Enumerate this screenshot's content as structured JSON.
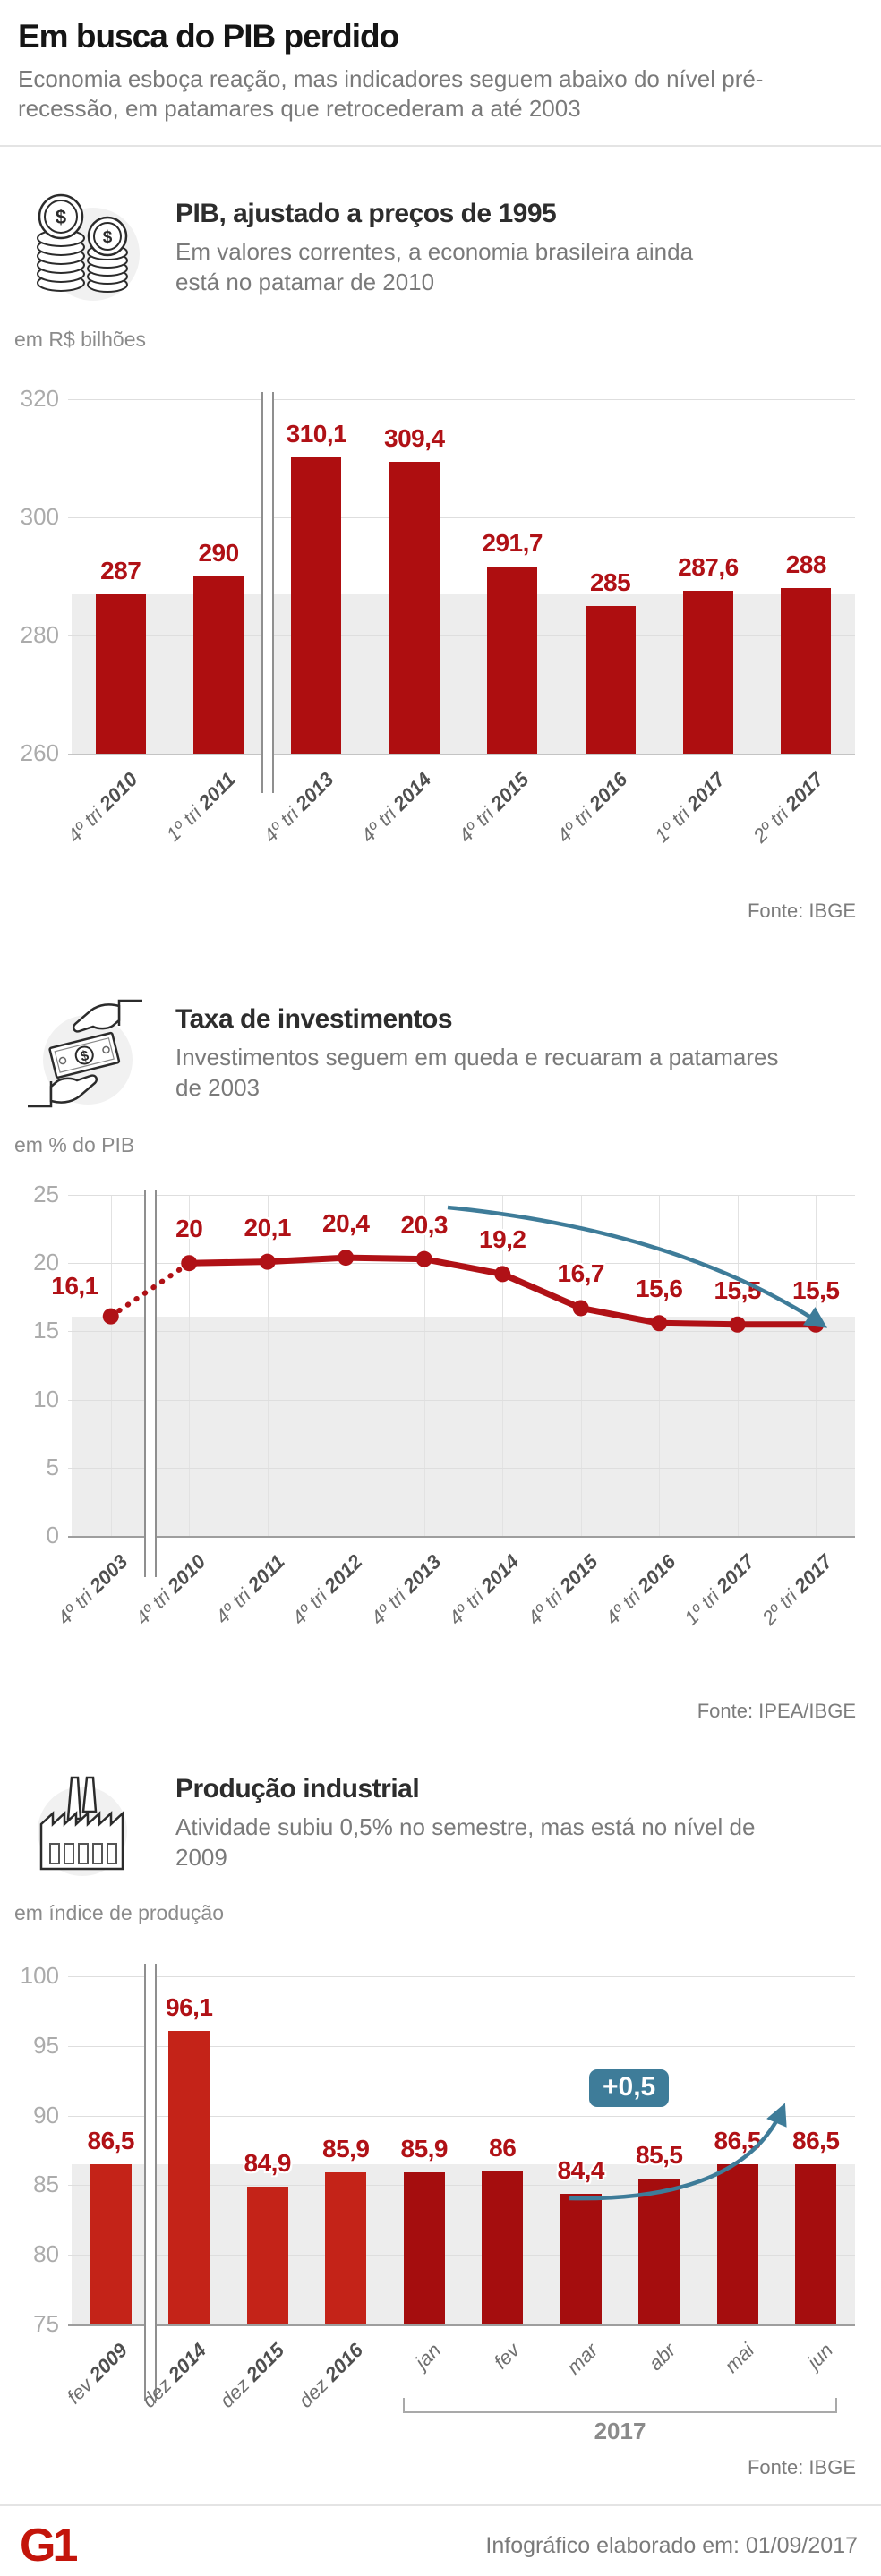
{
  "page": {
    "title": "Em busca do PIB perdido",
    "subtitle": "Economia esboça reação, mas indicadores seguem abaixo do nível pré-recessão, em patamares que retrocederam a até 2003"
  },
  "sections": [
    {
      "icon": "coins-icon",
      "title": "PIB, ajustado a preços de 1995",
      "subtitle": "Em valores correntes, a economia brasileira ainda está no patamar de 2010"
    },
    {
      "icon": "money-exchange-icon",
      "title": "Taxa de investimentos",
      "subtitle": "Investimentos seguem em queda e recuaram a patamares de 2003"
    },
    {
      "icon": "factory-icon",
      "title": "Produção industrial",
      "subtitle": "Atividade subiu 0,5% no semestre, mas está no nível de 2009"
    }
  ],
  "chart_data": [
    {
      "type": "bar",
      "title": "PIB, ajustado a preços de 1995",
      "ylabel": "em R$ bilhões",
      "categories": [
        "4º tri 2010",
        "1º tri 2011",
        "4º tri 2013",
        "4º tri 2014",
        "4º tri 2015",
        "4º tri 2016",
        "1º tri 2017",
        "2º tri 2017"
      ],
      "values": [
        287,
        290,
        310.1,
        309.4,
        291.7,
        285,
        287.6,
        288
      ],
      "labels": [
        "287",
        "290",
        "310,1",
        "309,4",
        "291,7",
        "285",
        "287,6",
        "288"
      ],
      "ylim": [
        260,
        320
      ],
      "yticks": [
        320,
        300,
        280,
        260
      ],
      "reference_band": [
        260,
        287
      ],
      "axis_break_after_index": 1,
      "grid": "horizontal",
      "legend": "none",
      "source": "Fonte: IBGE"
    },
    {
      "type": "line",
      "title": "Taxa de investimentos",
      "ylabel": "em % do PIB",
      "categories": [
        "4º tri 2003",
        "4º tri 2010",
        "4º tri 2011",
        "4º tri 2012",
        "4º tri 2013",
        "4º tri 2014",
        "4º tri 2015",
        "4º tri 2016",
        "1º tri 2017",
        "2º tri 2017"
      ],
      "values": [
        16.1,
        20,
        20.1,
        20.4,
        20.3,
        19.2,
        16.7,
        15.6,
        15.5,
        15.5
      ],
      "labels": [
        "16,1",
        "20",
        "20,1",
        "20,4",
        "20,3",
        "19,2",
        "16,7",
        "15,6",
        "15,5",
        "15,5"
      ],
      "ylim": [
        0,
        25
      ],
      "yticks": [
        25,
        20,
        15,
        10,
        5,
        0
      ],
      "reference_band": [
        0,
        16.1
      ],
      "axis_break_after_index": 0,
      "dotted_segment": [
        0,
        1
      ],
      "annotation_arrow": "down-right",
      "grid": "horizontal+vertical",
      "legend": "none",
      "source": "Fonte: IPEA/IBGE"
    },
    {
      "type": "bar",
      "title": "Produção industrial",
      "ylabel": "em índice de produção",
      "categories": [
        "fev 2009",
        "dez 2014",
        "dez 2015",
        "dez 2016",
        "jan",
        "fev",
        "mar",
        "abr",
        "mai",
        "jun"
      ],
      "values": [
        86.5,
        96.1,
        84.9,
        85.9,
        85.9,
        86,
        84.4,
        85.5,
        86.5,
        86.5
      ],
      "labels": [
        "86,5",
        "96,1",
        "84,9",
        "85,9",
        "85,9",
        "86",
        "84,4",
        "85,5",
        "86,5",
        "86,5"
      ],
      "ylim": [
        75,
        100
      ],
      "yticks": [
        100,
        95,
        90,
        85,
        80,
        75
      ],
      "reference_band": [
        75,
        86.5
      ],
      "axis_break_after_index": 0,
      "bar_color_split_index": 4,
      "annotation_badge": "+0,5",
      "annotation_arrow": "up-right",
      "bracket": {
        "from_index": 4,
        "to_index": 9,
        "label": "2017"
      },
      "grid": "horizontal",
      "legend": "none",
      "source": "Fonte: IBGE"
    }
  ],
  "footer": {
    "logo": "G1",
    "note": "Infográfico elaborado em: 01/09/2017"
  },
  "colors": {
    "bar_red": "#ae0e10",
    "bar_red_light": "#c42318",
    "bar_red_dark": "#a50d0e",
    "label_red": "#b01116",
    "line_red": "#b01116",
    "accent_blue": "#3e7c99",
    "band_gray": "#ededed",
    "grid_gray": "#dedede",
    "tick_gray": "#ababab",
    "text_dark": "#151515",
    "text_gray": "#7a7a7a"
  }
}
